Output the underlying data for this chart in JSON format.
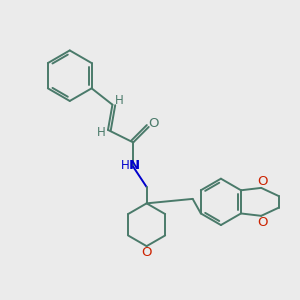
{
  "background_color": "#ebebeb",
  "bond_color": "#4a7a6a",
  "nitrogen_color": "#0000cc",
  "oxygen_color": "#cc2200",
  "label_fontsize": 8.5,
  "figsize": [
    3.0,
    3.0
  ],
  "dpi": 100,
  "xlim": [
    0,
    10
  ],
  "ylim": [
    0,
    10
  ]
}
